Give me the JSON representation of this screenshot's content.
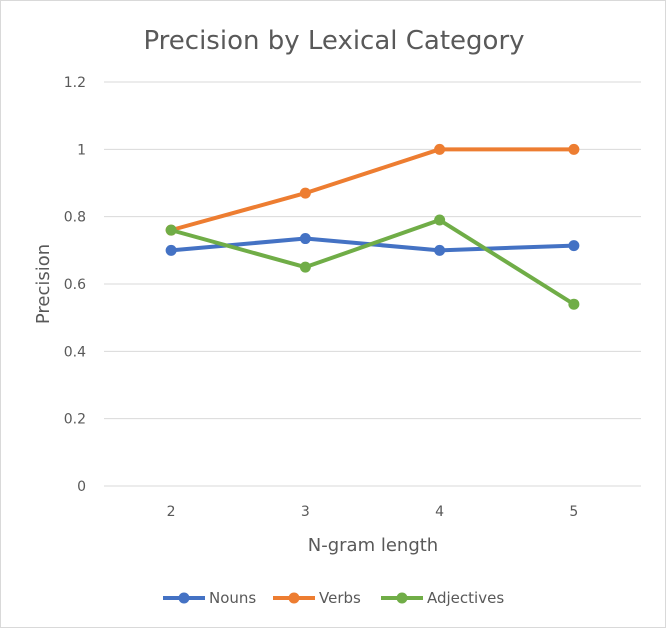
{
  "chart_data": {
    "type": "line",
    "title": "Precision by Lexical Category",
    "xlabel": "N-gram length",
    "ylabel": "Precision",
    "categories": [
      "2",
      "3",
      "4",
      "5"
    ],
    "yticks": [
      "0",
      "0.2",
      "0.4",
      "0.6",
      "0.8",
      "1",
      "1.2"
    ],
    "ylim": [
      0,
      1.2
    ],
    "grid": true,
    "legend_position": "bottom",
    "series": [
      {
        "name": "Nouns",
        "color": "#4472c4",
        "values": [
          0.7,
          0.735,
          0.7,
          0.714
        ]
      },
      {
        "name": "Verbs",
        "color": "#ed7d31",
        "values": [
          0.76,
          0.87,
          1.0,
          1.0
        ]
      },
      {
        "name": "Adjectives",
        "color": "#70ad47",
        "values": [
          0.76,
          0.65,
          0.79,
          0.54
        ]
      }
    ]
  }
}
